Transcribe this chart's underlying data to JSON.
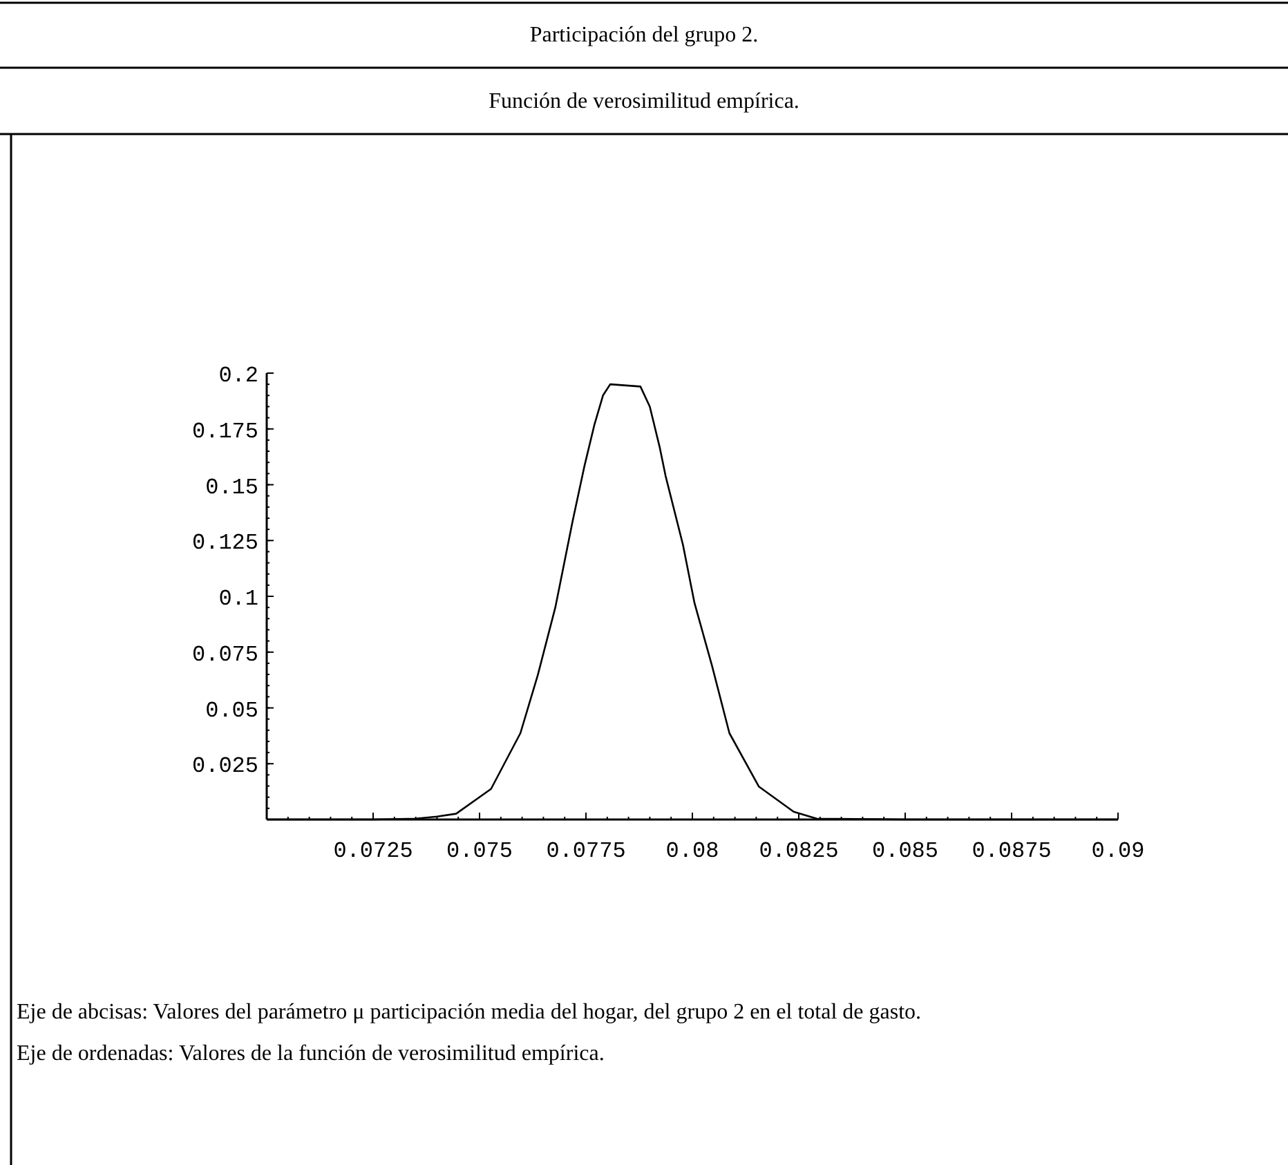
{
  "chart_data": {
    "type": "line",
    "title": "Participación del grupo 2.",
    "subtitle": "Función de verosimilitud empírica.",
    "annotations": [
      "Eje de abcisas: Valores del parámetro μ participación media del hogar, del grupo 2 en el total de gasto.",
      "Eje de ordenadas: Valores de la función de verosimilitud empírica."
    ],
    "series": [
      {
        "color": "#000000",
        "x": [
          0.07,
          0.0725,
          0.0735,
          0.074,
          0.07445,
          0.07527,
          0.07596,
          0.07637,
          0.07678,
          0.07719,
          0.07746,
          0.0777,
          0.0779,
          0.07807,
          0.07878,
          0.079,
          0.07923,
          0.07937,
          0.07978,
          0.08005,
          0.08046,
          0.08087,
          0.08156,
          0.08238,
          0.08292,
          0.085,
          0.09
        ],
        "values": [
          0,
          0,
          0.0004,
          0.0013,
          0.0026,
          0.0137,
          0.0387,
          0.0648,
          0.095,
          0.134,
          0.158,
          0.177,
          0.19,
          0.195,
          0.194,
          0.185,
          0.167,
          0.154,
          0.123,
          0.097,
          0.069,
          0.0387,
          0.0148,
          0.0035,
          0.0004,
          0,
          0
        ]
      }
    ],
    "xlim": [
      0.07,
      0.09
    ],
    "xticks": [
      0.0725,
      0.075,
      0.0775,
      0.08,
      0.0825,
      0.085,
      0.0875,
      0.09
    ],
    "ylim": [
      0,
      0.2
    ],
    "yticks": [
      0.025,
      0.05,
      0.075,
      0.1,
      0.125,
      0.15,
      0.175,
      0.2
    ],
    "grid": false,
    "marker": "none",
    "line_style": "solid"
  }
}
